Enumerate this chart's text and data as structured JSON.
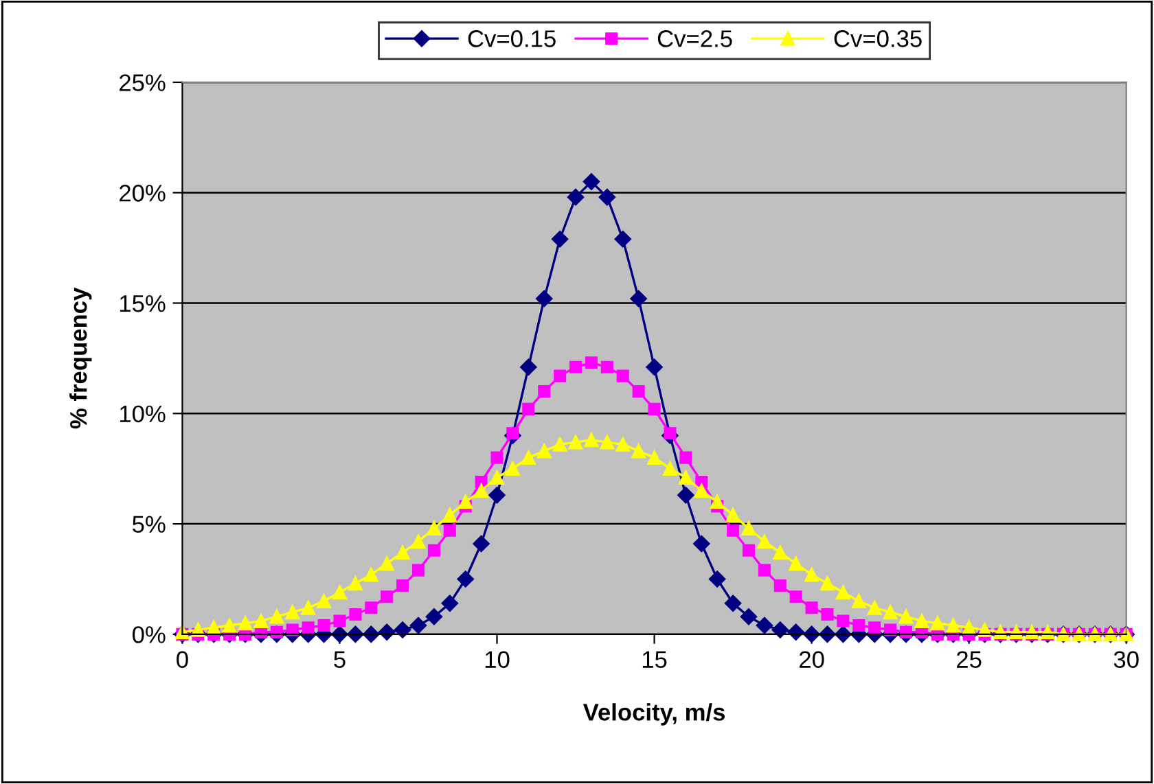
{
  "chart_data": {
    "type": "line",
    "xlabel": "Velocity, m/s",
    "ylabel": "% frequency",
    "x": [
      0,
      0.5,
      1,
      1.5,
      2,
      2.5,
      3,
      3.5,
      4,
      4.5,
      5,
      5.5,
      6,
      6.5,
      7,
      7.5,
      8,
      8.5,
      9,
      9.5,
      10,
      10.5,
      11,
      11.5,
      12,
      12.5,
      13,
      13.5,
      14,
      14.5,
      15,
      15.5,
      16,
      16.5,
      17,
      17.5,
      18,
      18.5,
      19,
      19.5,
      20,
      20.5,
      21,
      21.5,
      22,
      22.5,
      23,
      23.5,
      24,
      24.5,
      25,
      25.5,
      26,
      26.5,
      27,
      27.5,
      28,
      28.5,
      29,
      29.5,
      30
    ],
    "series": [
      {
        "name": "Cv=0.15",
        "color": "#000080",
        "marker": "diamond",
        "values": [
          0,
          0,
          0,
          0,
          0,
          0,
          0,
          0,
          0,
          0,
          0,
          0,
          0,
          0.1,
          0.2,
          0.4,
          0.8,
          1.4,
          2.5,
          4.1,
          6.3,
          9.0,
          12.1,
          15.2,
          17.9,
          19.8,
          20.5,
          19.8,
          17.9,
          15.2,
          12.1,
          9.0,
          6.3,
          4.1,
          2.5,
          1.4,
          0.8,
          0.4,
          0.2,
          0.1,
          0,
          0,
          0,
          0,
          0,
          0,
          0,
          0,
          0,
          0,
          0,
          0,
          0,
          0,
          0,
          0,
          0,
          0,
          0,
          0,
          0
        ]
      },
      {
        "name": "Cv=2.5",
        "color": "#ff00ff",
        "marker": "square",
        "values": [
          0,
          0,
          0,
          0,
          0,
          0.1,
          0.1,
          0.2,
          0.3,
          0.4,
          0.6,
          0.9,
          1.2,
          1.7,
          2.2,
          2.9,
          3.8,
          4.7,
          5.8,
          6.9,
          8.0,
          9.1,
          10.2,
          11.0,
          11.7,
          12.1,
          12.3,
          12.1,
          11.7,
          11.0,
          10.2,
          9.1,
          8.0,
          6.9,
          5.8,
          4.7,
          3.8,
          2.9,
          2.2,
          1.7,
          1.2,
          0.9,
          0.6,
          0.4,
          0.3,
          0.2,
          0.1,
          0.1,
          0,
          0,
          0,
          0,
          0,
          0,
          0,
          0,
          0,
          0,
          0,
          0,
          0
        ]
      },
      {
        "name": "Cv=0.35",
        "color": "#ffff00",
        "marker": "triangle",
        "values": [
          0.1,
          0.2,
          0.3,
          0.4,
          0.5,
          0.6,
          0.8,
          1.0,
          1.2,
          1.5,
          1.9,
          2.3,
          2.7,
          3.2,
          3.7,
          4.2,
          4.8,
          5.4,
          6.0,
          6.5,
          7.1,
          7.5,
          8.0,
          8.3,
          8.6,
          8.7,
          8.8,
          8.7,
          8.6,
          8.3,
          8.0,
          7.5,
          7.1,
          6.5,
          6.0,
          5.4,
          4.8,
          4.2,
          3.7,
          3.2,
          2.7,
          2.3,
          1.9,
          1.5,
          1.2,
          1.0,
          0.8,
          0.6,
          0.5,
          0.4,
          0.3,
          0.2,
          0.1,
          0.1,
          0.1,
          0.1,
          0,
          0,
          0,
          0,
          0
        ]
      }
    ],
    "xlim": [
      0,
      30
    ],
    "xticks": [
      0,
      5,
      10,
      15,
      20,
      25,
      30
    ],
    "ylim": [
      0,
      25
    ],
    "yticks": [
      {
        "value": 0,
        "label": "0%"
      },
      {
        "value": 5,
        "label": "5%"
      },
      {
        "value": 10,
        "label": "10%"
      },
      {
        "value": 15,
        "label": "15%"
      },
      {
        "value": 20,
        "label": "20%"
      },
      {
        "value": 25,
        "label": "25%"
      }
    ],
    "grid": "y",
    "legend": "top",
    "line_style": "solid"
  }
}
